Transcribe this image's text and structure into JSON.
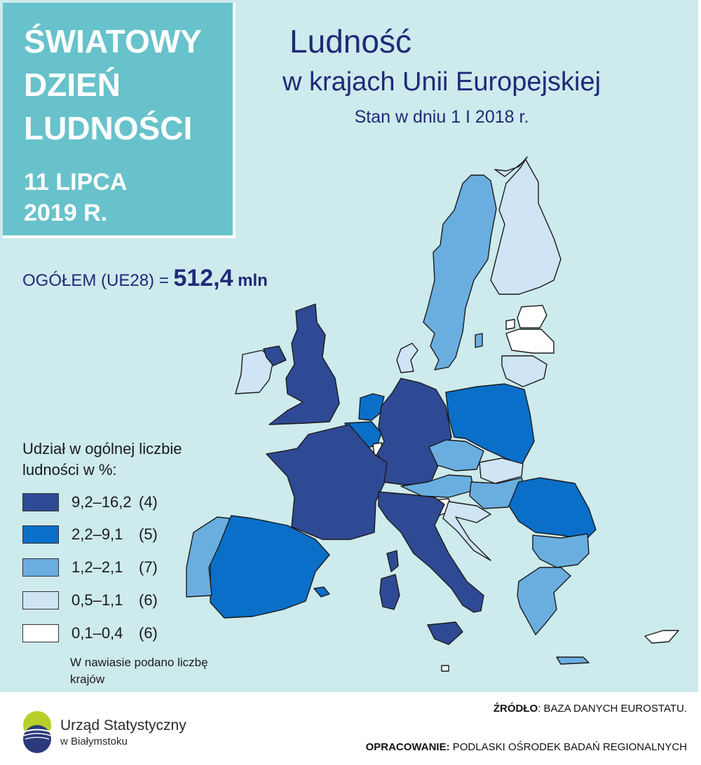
{
  "badge": {
    "title_lines": [
      "ŚWIATOWY",
      "DZIEŃ",
      "LUDNOŚCI"
    ],
    "date_lines": [
      "11 LIPCA",
      "2019 R."
    ]
  },
  "header": {
    "title": "Ludność",
    "subtitle": "w krajach Unii Europejskiej",
    "date": "Stan w dniu 1 I 2018 r."
  },
  "total": {
    "label": "OGÓŁEM (UE28) =",
    "value": "512,4",
    "unit": "mln"
  },
  "legend": {
    "title": "Udział w ogólnej liczbie ludności w %:",
    "items": [
      {
        "range": "9,2–16,2",
        "count": "(4)",
        "color": "#2f4a94"
      },
      {
        "range": "2,2–9,1",
        "count": "(5)",
        "color": "#0a6fc9"
      },
      {
        "range": "1,2–2,1",
        "count": "(7)",
        "color": "#6aaee0"
      },
      {
        "range": "0,5–1,1",
        "count": "(6)",
        "color": "#cfe4f4"
      },
      {
        "range": "0,1–0,4",
        "count": "(6)",
        "color": "#ffffff"
      }
    ],
    "note": "W nawiasie podano liczbę krajów"
  },
  "map": {
    "sea_color": "#cdeaec",
    "border_color": "#1a1a1a",
    "countries": [
      {
        "name": "Finland",
        "class": 3
      },
      {
        "name": "Sweden",
        "class": 2
      },
      {
        "name": "Estonia",
        "class": 4
      },
      {
        "name": "Latvia",
        "class": 4
      },
      {
        "name": "Lithuania",
        "class": 3
      },
      {
        "name": "Denmark",
        "class": 3
      },
      {
        "name": "Ireland",
        "class": 3
      },
      {
        "name": "Northern Ireland (UK)",
        "class": 0
      },
      {
        "name": "United Kingdom",
        "class": 0
      },
      {
        "name": "Netherlands",
        "class": 1
      },
      {
        "name": "Belgium",
        "class": 1
      },
      {
        "name": "Luxembourg",
        "class": 4
      },
      {
        "name": "Germany",
        "class": 0
      },
      {
        "name": "Poland",
        "class": 1
      },
      {
        "name": "Czechia",
        "class": 2
      },
      {
        "name": "Slovakia",
        "class": 3
      },
      {
        "name": "Austria",
        "class": 2
      },
      {
        "name": "Hungary",
        "class": 2
      },
      {
        "name": "Slovenia",
        "class": 4
      },
      {
        "name": "Croatia",
        "class": 3
      },
      {
        "name": "Romania",
        "class": 1
      },
      {
        "name": "Bulgaria",
        "class": 2
      },
      {
        "name": "Greece",
        "class": 2
      },
      {
        "name": "France",
        "class": 0
      },
      {
        "name": "Spain",
        "class": 1
      },
      {
        "name": "Portugal",
        "class": 2
      },
      {
        "name": "Italy",
        "class": 0
      },
      {
        "name": "Sardinia (IT)",
        "class": 0
      },
      {
        "name": "Sicily (IT)",
        "class": 0
      },
      {
        "name": "Corsica (FR)",
        "class": 0
      },
      {
        "name": "Balearic Islands (ES)",
        "class": 1
      },
      {
        "name": "Malta",
        "class": 4
      },
      {
        "name": "Cyprus",
        "class": 4
      },
      {
        "name": "Crete (GR)",
        "class": 2
      },
      {
        "name": "Gotland (SE)",
        "class": 2
      },
      {
        "name": "Saaremaa (EE)",
        "class": 4
      }
    ]
  },
  "footer": {
    "source_label": "ŹRÓDŁO",
    "source_text": ": BAZA DANYCH EUROSTATU.",
    "credit_label": "OPRACOWANIE:",
    "credit_text": " PODLASKI OŚRODEK BADAŃ REGIONALNYCH",
    "logo_name": "Urząd Statystyczny",
    "logo_city": "w Białymstoku"
  }
}
